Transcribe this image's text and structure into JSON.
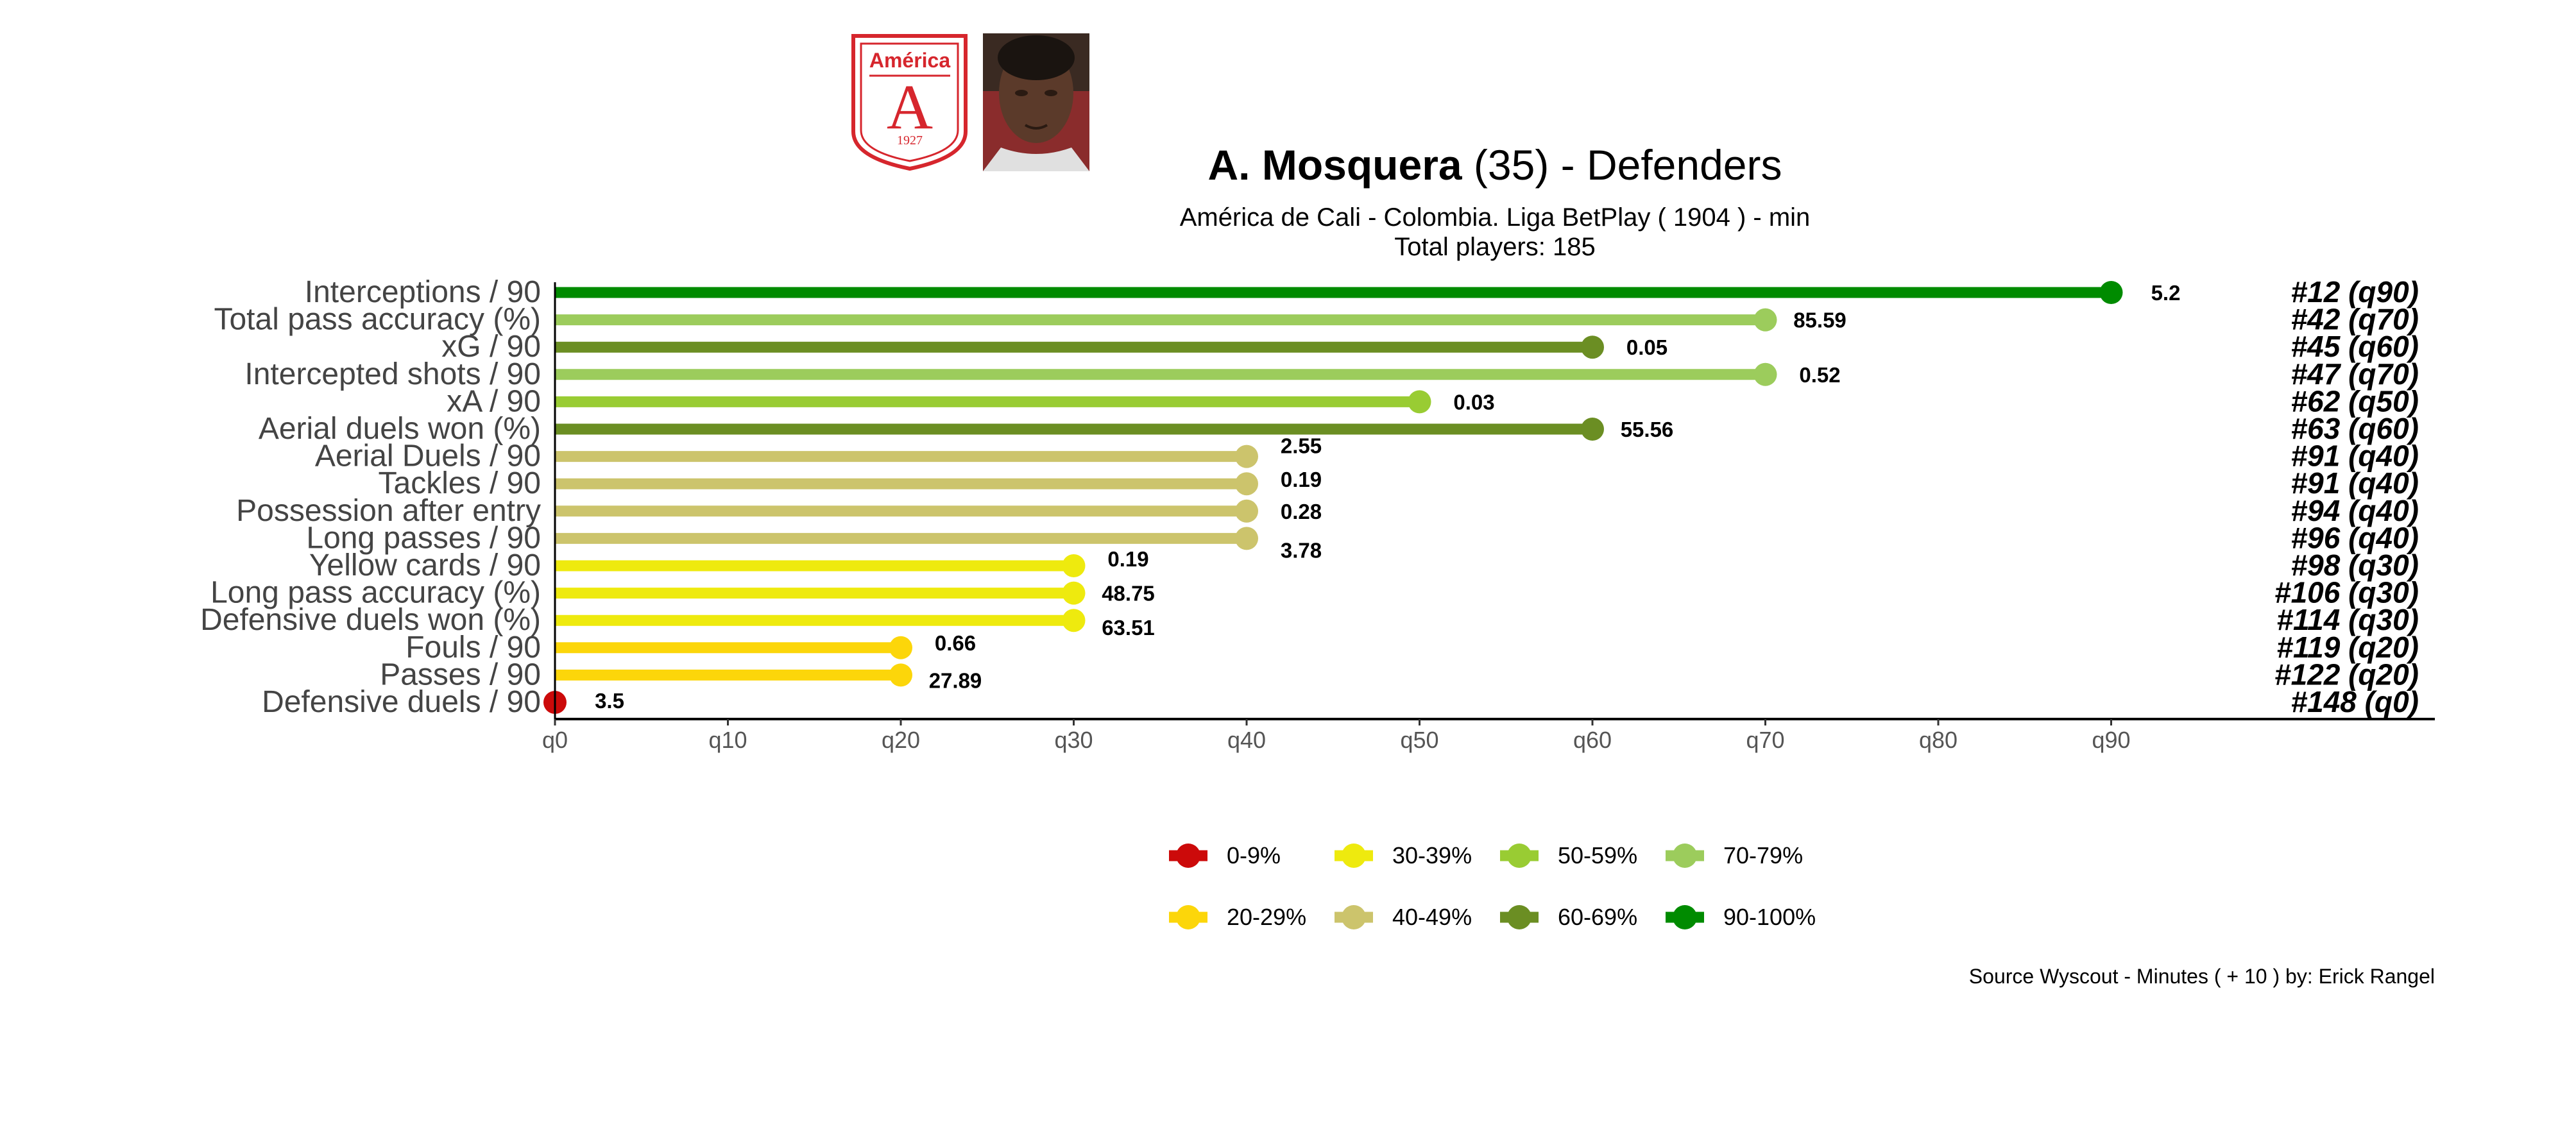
{
  "header": {
    "club_logo": {
      "text": "América",
      "letter": "A",
      "year": "1927"
    },
    "player_name": "A. Mosquera",
    "age_text": " (35) -  Defenders",
    "subtitle": "América de Cali  -  Colombia. Liga BetPlay  ( 1904 ) - min",
    "total_players": "Total players:  185"
  },
  "chart_data": {
    "type": "bar",
    "title": "A. Mosquera (35) -  Defenders",
    "x_axis": {
      "ticks": [
        "q0",
        "q10",
        "q20",
        "q30",
        "q40",
        "q50",
        "q60",
        "q70",
        "q80",
        "q90"
      ],
      "range": [
        0,
        90
      ]
    },
    "categories": [
      "Interceptions / 90",
      "Total pass accuracy (%)",
      "xG / 90",
      "Intercepted shots / 90",
      "xA / 90",
      "Aerial duels won (%)",
      "Aerial Duels / 90",
      "Tackles / 90",
      "Possession after entry",
      "Long passes / 90",
      "Yellow cards / 90",
      "Long pass accuracy (%)",
      "Defensive duels won (%)",
      "Fouls / 90",
      "Passes / 90",
      "Defensive duels / 90"
    ],
    "percentile_bin": [
      90,
      70,
      60,
      70,
      50,
      60,
      40,
      40,
      40,
      40,
      30,
      30,
      30,
      20,
      20,
      0
    ],
    "values": [
      "5.2",
      "85.59",
      "0.05",
      "0.52",
      "0.03",
      "55.56",
      "2.55",
      "0.19",
      "0.28",
      "3.78",
      "0.19",
      "48.75",
      "63.51",
      "0.66",
      "27.89",
      "3.5"
    ],
    "value_label_dy": [
      0,
      0,
      0,
      0,
      0,
      0,
      -17,
      -7,
      0,
      18,
      -11,
      0,
      11,
      -8,
      8,
      -3
    ],
    "ranks": [
      "#12 (q90)",
      "#42 (q70)",
      "#45 (q60)",
      "#47 (q70)",
      "#62 (q50)",
      "#63 (q60)",
      "#91 (q40)",
      "#91 (q40)",
      "#94 (q40)",
      "#96 (q40)",
      "#98 (q30)",
      "#106 (q30)",
      "#114 (q30)",
      "#119 (q20)",
      "#122 (q20)",
      "#148 (q0)"
    ],
    "legend": [
      {
        "label": "0-9%",
        "color": "#cc0a0a"
      },
      {
        "label": "30-39%",
        "color": "#eeea0e"
      },
      {
        "label": "50-59%",
        "color": "#99cc33"
      },
      {
        "label": "70-79%",
        "color": "#9ccc5c"
      },
      {
        "label": "20-29%",
        "color": "#fcd60a"
      },
      {
        "label": "40-49%",
        "color": "#ccc46c"
      },
      {
        "label": "60-69%",
        "color": "#6b8e23"
      },
      {
        "label": "90-100%",
        "color": "#008b00"
      }
    ],
    "bin_colors": {
      "0": "#cc0a0a",
      "20": "#fcd60a",
      "30": "#eeea0e",
      "40": "#ccc46c",
      "50": "#99cc33",
      "60": "#6b8e23",
      "70": "#9ccc5c",
      "90": "#008b00"
    },
    "legend_placement": "bottom",
    "grid": false
  },
  "caption": "Source Wyscout - Minutes ( + 10 ) by: Erick Rangel"
}
